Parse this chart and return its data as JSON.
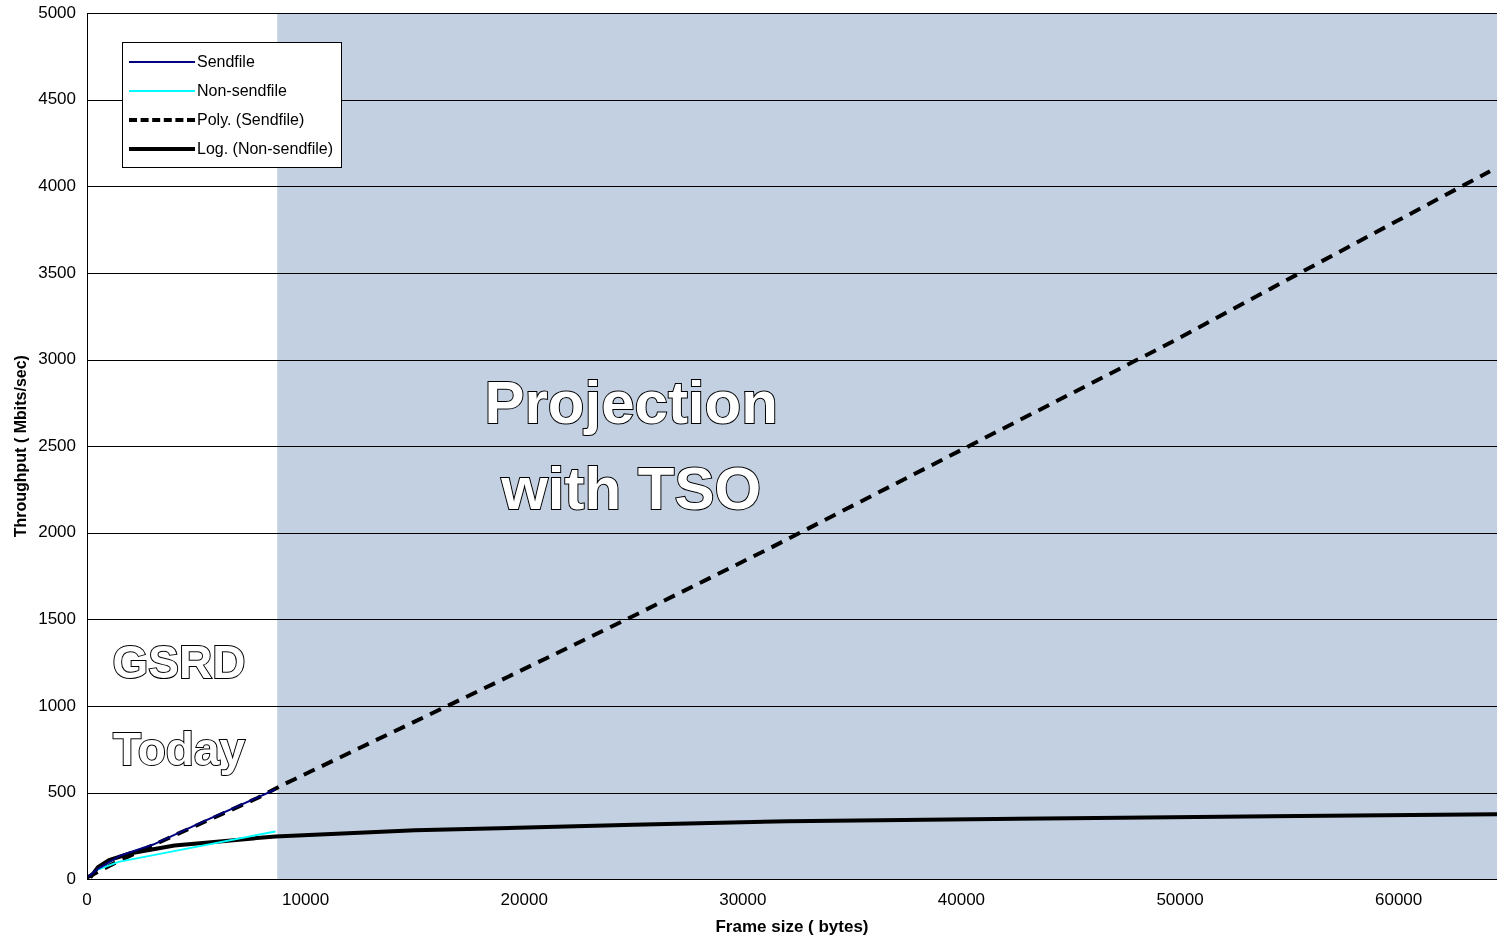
{
  "chart_data": {
    "type": "line",
    "xlabel": "Frame size ( bytes)",
    "ylabel": "Throughput ( Mbits/sec)",
    "xlim": [
      0,
      64500
    ],
    "xticks": [
      0,
      10000,
      20000,
      30000,
      40000,
      50000,
      60000
    ],
    "ylim": [
      0,
      5000
    ],
    "yticks": [
      0,
      500,
      1000,
      1500,
      2000,
      2500,
      3000,
      3500,
      4000,
      4500,
      5000
    ],
    "grid": "y",
    "legend": "top left",
    "marker": "none",
    "bands": [
      {
        "axis": "x",
        "from": 8700,
        "to": 64500,
        "label": "Projection with TSO",
        "color": "#b8c8dc"
      }
    ],
    "annotations": [
      "GSRD Today"
    ],
    "series": [
      {
        "name": "Sendfile",
        "color": "#000080",
        "x": [
          64,
          500,
          1500,
          3030,
          5360,
          8620
        ],
        "values": [
          15,
          60,
          135,
          200,
          335,
          518
        ]
      },
      {
        "name": "Non-sendfile",
        "color": "#00ffff",
        "x": [
          500,
          1440,
          4100,
          8620
        ],
        "values": [
          55,
          100,
          165,
          276
        ]
      },
      {
        "name": "Poly. (Sendfile)",
        "color": "#000000",
        "line_style": "dashed",
        "x": [
          0,
          1440,
          4000,
          7820,
          8990,
          18910,
          25060,
          31250,
          49600,
          55660,
          64180
        ],
        "values": [
          10,
          105,
          253,
          470,
          547,
          1147,
          1524,
          1912,
          3100,
          3512,
          4088
        ]
      },
      {
        "name": "Log. (Non-sendfile)",
        "color": "#000000",
        "x": [
          150,
          500,
          1000,
          2000,
          4000,
          8620,
          15000,
          25000,
          32050,
          45000,
          64500
        ],
        "values": [
          10,
          70,
          110,
          150,
          195,
          247,
          282,
          314,
          335,
          352,
          375
        ]
      }
    ]
  }
}
